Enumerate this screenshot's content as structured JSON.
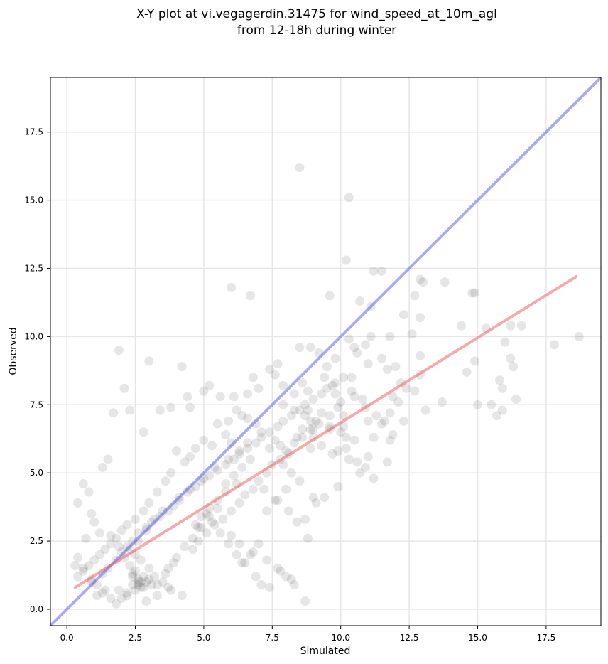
{
  "chart_data": {
    "type": "scatter",
    "title": "X-Y plot at vi.vegagerdin.31475 for wind_speed_at_10m_agl",
    "subtitle": "from 12-18h during winter",
    "xlabel": "Simulated",
    "ylabel": "Observed",
    "xlim": [
      -0.6,
      19.5
    ],
    "ylim": [
      -0.6,
      19.5
    ],
    "xticks": [
      0.0,
      2.5,
      5.0,
      7.5,
      10.0,
      12.5,
      15.0,
      17.5
    ],
    "xtick_labels": [
      "0.0",
      "2.5",
      "5.0",
      "7.5",
      "10.0",
      "12.5",
      "15.0",
      "17.5"
    ],
    "yticks": [
      0.0,
      2.5,
      5.0,
      7.5,
      10.0,
      12.5,
      15.0,
      17.5
    ],
    "ytick_labels": [
      "0.0",
      "2.5",
      "5.0",
      "7.5",
      "10.0",
      "12.5",
      "15.0",
      "17.5"
    ],
    "grid": true,
    "colors": {
      "points": "#333333",
      "identity_line": "#5555ee",
      "regression_line": "#ee5555",
      "grid": "#e6e6e6"
    },
    "lines": [
      {
        "role": "identity",
        "color": "#5555ee",
        "x": [
          -0.6,
          19.5
        ],
        "y": [
          -0.6,
          19.5
        ]
      },
      {
        "role": "regression",
        "color": "#ee5555",
        "x": [
          0.3,
          18.6
        ],
        "y": [
          0.8,
          12.2
        ]
      }
    ],
    "points": {
      "x": [
        8.5,
        10.3,
        10.2,
        6.0,
        6.7,
        11.2,
        11.5,
        12.9,
        13.0,
        13.8,
        14.8,
        14.9,
        9.6,
        10.7,
        11.1,
        12.7,
        12.3,
        12.9,
        14.4,
        14.6,
        15.3,
        15.8,
        16.2,
        16.6,
        17.8,
        18.7,
        16.0,
        16.2,
        16.3,
        15.5,
        15.9,
        15.7,
        15.0,
        16.4,
        14.9,
        15.9,
        13.1,
        13.7,
        12.9,
        12.6,
        11.1,
        11.8,
        10.3,
        10.9,
        10.5,
        10.6,
        11.5,
        12.9,
        12.2,
        11.7,
        11.0,
        12.0,
        11.9,
        12.4,
        12.7,
        10.4,
        10.5,
        10.9,
        11.0,
        11.3,
        11.6,
        11.8,
        11.2,
        10.1,
        10.2,
        9.9,
        10.3,
        10.6,
        10.9,
        11.0,
        10.7,
        11.2,
        11.7,
        8.5,
        8.9,
        9.2,
        9.8,
        9.5,
        9.4,
        9.7,
        8.6,
        8.8,
        8.3,
        8.8,
        9.0,
        7.9,
        7.6,
        7.7,
        7.4,
        7.0,
        6.8,
        6.6,
        6.2,
        6.1,
        6.4,
        5.9,
        6.0,
        5.8,
        5.5,
        5.3,
        5.0,
        4.7,
        4.5,
        4.3,
        4.0,
        3.8,
        3.6,
        3.3,
        3.0,
        2.8,
        2.5,
        2.2,
        2.0,
        1.8,
        1.6,
        1.4,
        1.2,
        1.0,
        0.8,
        0.6,
        0.4,
        0.3,
        0.4,
        0.7,
        0.9,
        1.1,
        1.3,
        1.5,
        1.8,
        2.0,
        2.2,
        2.4,
        2.6,
        2.9,
        3.1,
        3.4,
        3.7,
        3.9,
        4.1,
        4.4,
        4.7,
        4.9,
        5.2,
        5.5,
        5.8,
        6.1,
        6.3,
        6.6,
        6.9,
        7.1,
        7.4,
        7.7,
        7.9,
        8.2,
        8.5,
        8.7,
        9.0,
        9.3,
        9.5,
        9.8,
        10.1,
        1.9,
        2.1,
        2.3,
        1.7,
        2.8,
        3.0,
        4.2,
        4.4,
        4.5,
        5.0,
        5.2,
        5.6,
        3.4,
        3.8,
        1.5,
        1.3,
        0.6,
        0.8,
        0.4,
        0.9,
        1.0,
        1.2,
        1.6,
        1.9,
        2.5,
        2.7,
        3.0,
        3.2,
        3.5,
        3.7,
        1.4,
        1.1,
        2.6,
        2.4,
        2.2,
        2.0,
        1.8,
        2.9,
        3.3,
        2.7,
        2.6,
        2.8,
        2.5,
        2.3,
        3.1,
        3.6,
        3.9,
        4.6,
        4.8,
        5.1,
        5.4,
        5.7,
        6.0,
        6.3,
        6.5,
        6.8,
        7.0,
        7.3,
        7.5,
        7.8,
        8.0,
        8.3,
        8.6,
        8.9,
        9.2,
        9.6,
        9.9,
        10.0,
        7.2,
        7.6,
        8.1,
        8.4,
        8.8,
        7.0,
        6.7,
        6.4,
        6.9,
        7.1,
        7.4,
        7.8,
        8.2,
        8.7,
        9.1,
        9.4,
        9.9,
        5.3,
        5.6,
        5.9,
        6.2,
        6.5,
        5.1,
        4.8,
        4.6,
        4.3,
        4.0,
        3.7,
        5.8,
        6.1,
        6.4,
        6.7,
        5.5,
        5.2,
        4.9,
        7.9,
        8.2,
        8.5,
        8.0,
        7.7,
        7.3,
        9.0,
        9.3,
        9.7,
        10.2,
        10.5,
        10.0,
        9.6,
        9.1,
        8.7,
        8.3,
        7.9,
        6.6,
        6.3,
        5.9,
        5.4,
        5.0,
        4.5,
        4.1,
        3.5,
        3.2,
        2.9,
        2.6,
        2.3,
        2.1,
        2.6,
        2.7,
        2.8,
        2.5,
        3.0,
        2.4,
        7.4,
        7.6,
        7.1,
        6.9,
        6.6,
        7.8,
        8.1,
        8.4,
        8.6,
        8.9,
        6.2,
        5.8,
        5.5,
        5.2,
        4.9,
        4.7,
        6.0,
        6.3,
        6.8,
        7.3,
        7.7,
        8.0,
        8.3,
        1.9,
        2.2,
        1.6,
        1.3,
        0.9,
        0.6,
        2.4,
        2.9,
        3.3,
        3.8,
        4.2,
        11.5,
        11.8,
        12.1,
        10.8,
        10.4,
        11.9,
        12.3,
        9.8,
        10.1,
        9.6,
        9.3,
        8.9,
        9.0,
        8.7
      ],
      "y": [
        16.2,
        15.1,
        12.8,
        11.8,
        11.5,
        12.4,
        12.4,
        12.1,
        12.0,
        12.0,
        11.6,
        11.6,
        11.5,
        11.3,
        11.1,
        11.5,
        10.8,
        10.7,
        10.4,
        8.7,
        10.3,
        8.4,
        10.4,
        10.4,
        9.7,
        10.0,
        9.8,
        9.2,
        8.9,
        7.5,
        7.3,
        7.1,
        7.5,
        7.7,
        9.1,
        8.1,
        7.3,
        7.6,
        9.3,
        10.1,
        10.0,
        10.0,
        9.9,
        9.7,
        9.6,
        9.4,
        9.2,
        8.6,
        8.3,
        8.8,
        9.0,
        8.9,
        7.8,
        8.1,
        8.0,
        8.5,
        7.8,
        7.4,
        6.9,
        7.1,
        6.9,
        6.2,
        6.3,
        6.7,
        6.3,
        5.8,
        5.5,
        5.4,
        5.2,
        5.6,
        5.0,
        4.8,
        5.4,
        9.6,
        9.6,
        9.4,
        9.2,
        8.9,
        8.5,
        8.2,
        8.3,
        8.0,
        7.9,
        7.3,
        6.6,
        8.2,
        8.6,
        9.0,
        8.8,
        8.1,
        8.5,
        7.9,
        7.3,
        7.8,
        7.1,
        6.9,
        6.1,
        6.4,
        6.8,
        6.0,
        6.2,
        5.9,
        5.6,
        5.4,
        5.8,
        5.0,
        4.7,
        4.3,
        3.9,
        3.6,
        3.3,
        3.1,
        2.9,
        2.6,
        2.4,
        2.2,
        2.0,
        1.8,
        1.6,
        1.4,
        1.2,
        1.6,
        1.9,
        2.6,
        1.1,
        0.9,
        1.3,
        1.5,
        1.8,
        2.1,
        2.3,
        2.5,
        2.8,
        3.0,
        3.2,
        3.4,
        3.6,
        3.8,
        4.1,
        4.3,
        4.5,
        4.7,
        4.9,
        5.1,
        5.3,
        5.5,
        5.7,
        5.9,
        6.1,
        6.3,
        6.5,
        6.7,
        6.9,
        7.1,
        7.3,
        7.5,
        7.7,
        7.9,
        8.1,
        8.3,
        8.5,
        9.5,
        8.1,
        7.3,
        7.2,
        6.5,
        9.1,
        8.9,
        7.8,
        7.4,
        8.0,
        8.2,
        7.8,
        7.3,
        7.4,
        5.5,
        5.2,
        4.6,
        4.3,
        3.9,
        3.5,
        3.2,
        2.8,
        2.7,
        2.3,
        2.0,
        1.8,
        1.5,
        1.2,
        1.0,
        0.8,
        0.7,
        0.5,
        1.1,
        0.9,
        0.6,
        0.4,
        0.2,
        0.3,
        0.5,
        0.8,
        1.0,
        1.2,
        1.4,
        1.6,
        0.9,
        1.3,
        1.7,
        2.2,
        2.5,
        2.8,
        3.1,
        3.3,
        3.6,
        3.9,
        4.2,
        4.4,
        4.7,
        5.0,
        5.3,
        5.5,
        5.8,
        6.1,
        6.3,
        6.6,
        6.8,
        7.1,
        7.4,
        7.6,
        4.4,
        4.0,
        3.6,
        3.2,
        2.6,
        2.4,
        2.0,
        1.7,
        1.2,
        0.9,
        0.8,
        1.4,
        1.1,
        0.3,
        3.9,
        4.1,
        4.5,
        3.2,
        2.8,
        2.4,
        2.0,
        1.7,
        3.5,
        3.0,
        2.6,
        2.3,
        1.9,
        1.5,
        4.6,
        4.9,
        5.2,
        5.5,
        3.7,
        3.4,
        3.0,
        5.3,
        5.0,
        4.7,
        4.4,
        4.0,
        3.6,
        6.3,
        6.0,
        5.7,
        5.9,
        6.2,
        6.5,
        6.7,
        6.9,
        7.1,
        7.3,
        7.5,
        6.1,
        5.8,
        5.5,
        5.2,
        4.8,
        4.4,
        4.0,
        3.6,
        3.3,
        2.9,
        2.5,
        2.2,
        1.9,
        0.9,
        1.0,
        0.8,
        0.7,
        1.1,
        1.3,
        5.9,
        6.2,
        6.5,
        6.8,
        7.0,
        6.0,
        5.7,
        6.3,
        6.6,
        6.9,
        4.6,
        4.3,
        4.0,
        3.7,
        3.4,
        3.1,
        2.7,
        2.4,
        2.1,
        1.8,
        1.5,
        1.2,
        0.9,
        0.7,
        0.5,
        0.4,
        0.6,
        1.0,
        1.5,
        1.2,
        1.0,
        0.9,
        0.7,
        0.5,
        6.8,
        7.2,
        7.6,
        7.7,
        8.0,
        6.4,
        6.9,
        7.9,
        7.1,
        6.6,
        7.2,
        5.9,
        4.1,
        3.3
      ]
    }
  }
}
